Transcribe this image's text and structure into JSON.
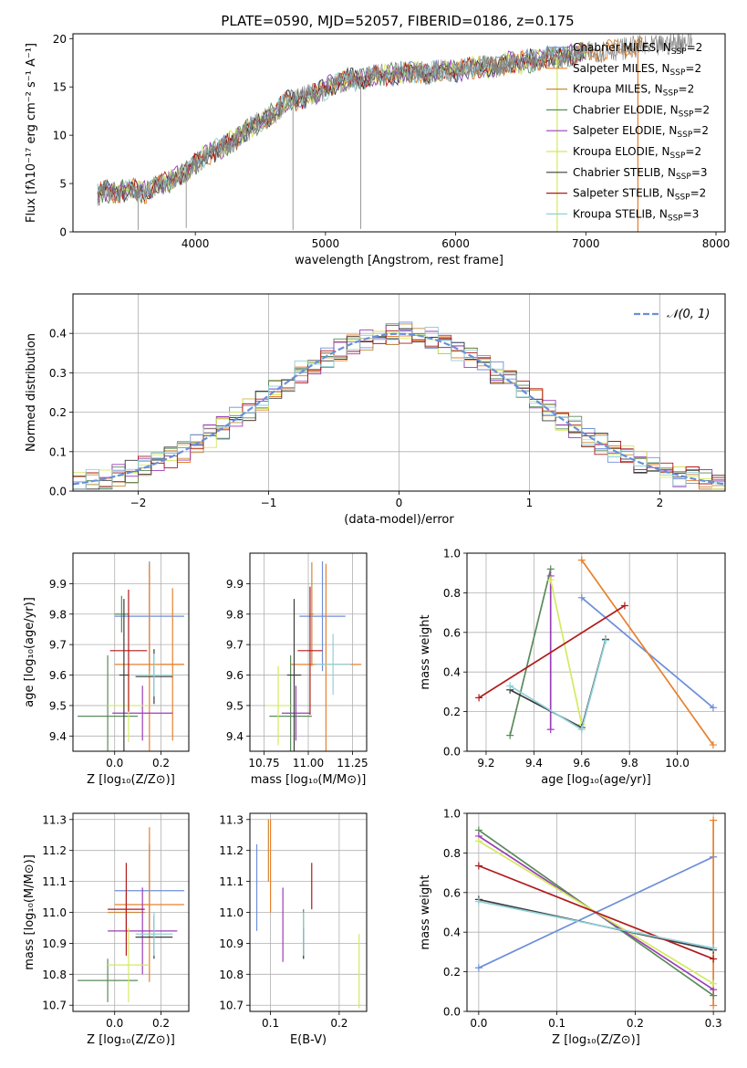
{
  "figure": {
    "title": "PLATE=0590, MJD=52057, FIBERID=0186, z=0.175"
  },
  "models": [
    {
      "name": "Chabrier MILES",
      "nssp": "2",
      "color": "#6e8fd8"
    },
    {
      "name": "Salpeter MILES",
      "nssp": "2",
      "color": "#e8802c"
    },
    {
      "name": "Kroupa MILES",
      "nssp": "2",
      "color": "#c98a3a"
    },
    {
      "name": "Chabrier ELODIE",
      "nssp": "2",
      "color": "#5a8a5a"
    },
    {
      "name": "Salpeter ELODIE",
      "nssp": "2",
      "color": "#9a3fb8"
    },
    {
      "name": "Kroupa ELODIE",
      "nssp": "2",
      "color": "#d4ea60"
    },
    {
      "name": "Chabrier STELIB",
      "nssp": "3",
      "color": "#3c3c3c"
    },
    {
      "name": "Salpeter STELIB",
      "nssp": "2",
      "color": "#b01a1a"
    },
    {
      "name": "Kroupa STELIB",
      "nssp": "3",
      "color": "#8fd0d8"
    }
  ],
  "chart_data": [
    {
      "id": "spectrum",
      "type": "line",
      "xlabel": "wavelength [Angstrom, rest frame]",
      "ylabel": "Flux [fλ10⁻¹⁷ erg cm⁻² s⁻¹ A⁻¹]",
      "xlim": [
        3060,
        8070
      ],
      "ylim": [
        0,
        20.5
      ],
      "xticks": [
        4000,
        5000,
        6000,
        7000,
        8000
      ],
      "yticks": [
        0,
        5,
        10,
        15,
        20
      ],
      "grid": false,
      "legend": "upper right",
      "observed": {
        "color": "#808080",
        "x": [
          3250,
          3300,
          3400,
          3500,
          3600,
          3700,
          3800,
          3900,
          4000,
          4100,
          4200,
          4300,
          4400,
          4500,
          4600,
          4700,
          4800,
          4900,
          5000,
          5100,
          5200,
          5300,
          5400,
          5500,
          5600,
          5700,
          5800,
          5900,
          6000,
          6100,
          6200,
          6300,
          6400,
          6500,
          6600,
          6700,
          6800,
          6900,
          7000,
          7100,
          7200,
          7300,
          7400,
          7500,
          7600,
          7700,
          7800
        ],
        "y": [
          3.8,
          4.3,
          4.0,
          4.5,
          4.0,
          4.8,
          5.2,
          6.0,
          7.0,
          8.0,
          8.8,
          9.5,
          10.5,
          11.5,
          12.2,
          13.5,
          13.8,
          14.2,
          14.8,
          15.5,
          15.8,
          15.8,
          16.3,
          16.3,
          16.5,
          16.6,
          16.4,
          16.8,
          16.5,
          17.0,
          17.2,
          17.0,
          17.5,
          17.6,
          17.7,
          18.0,
          18.1,
          18.3,
          18.5,
          18.7,
          18.8,
          19.0,
          19.2,
          19.1,
          19.3,
          19.6,
          19.8
        ]
      },
      "spikes": [
        {
          "x": 3560,
          "y": 0.2
        },
        {
          "x": 3930,
          "y": 0.4
        },
        {
          "x": 4750,
          "y": 0.2
        },
        {
          "x": 5270,
          "y": 0.3
        },
        {
          "x": 6780,
          "y": 0.2
        },
        {
          "x": 7400,
          "y": 0.3
        }
      ]
    },
    {
      "id": "residual-histogram",
      "type": "bar",
      "xlabel": "(data-model)/error",
      "ylabel": "Normed distribution",
      "xlim": [
        -2.5,
        2.5
      ],
      "ylim": [
        0,
        0.5
      ],
      "xticks": [
        -2,
        -1,
        0,
        1,
        2
      ],
      "yticks": [
        0.0,
        0.1,
        0.2,
        0.3,
        0.4
      ],
      "grid": true,
      "legend": "upper right",
      "reference": {
        "label": "𝒩(0, 1)",
        "color": "#6890d8",
        "mu": 0,
        "sigma": 1
      },
      "bin_width": 0.1,
      "bin_start": -2.5,
      "profile": [
        0.022,
        0.025,
        0.03,
        0.04,
        0.045,
        0.05,
        0.055,
        0.062,
        0.07,
        0.08,
        0.09,
        0.1,
        0.11,
        0.125,
        0.14,
        0.155,
        0.17,
        0.19,
        0.21,
        0.23,
        0.25,
        0.27,
        0.29,
        0.31,
        0.33,
        0.345,
        0.36,
        0.375,
        0.385,
        0.395,
        0.4,
        0.41,
        0.42,
        0.425,
        0.43,
        0.435,
        0.43,
        0.42,
        0.41,
        0.4,
        0.39,
        0.38,
        0.37,
        0.355,
        0.34,
        0.32,
        0.3,
        0.28,
        0.26,
        0.24,
        0.22,
        0.2,
        0.18,
        0.16,
        0.14,
        0.125,
        0.11,
        0.095,
        0.08,
        0.07,
        0.06,
        0.052,
        0.045,
        0.04,
        0.035,
        0.03,
        0.027,
        0.025,
        0.023,
        0.022,
        0.021,
        0.02,
        0.02,
        0.02,
        0.02,
        0.02,
        0.02,
        0.02,
        0.02,
        0.02,
        0.02,
        0.02,
        0.02,
        0.02,
        0.02,
        0.02,
        0.02,
        0.02,
        0.02,
        0.02,
        0.02,
        0.02,
        0.02,
        0.02,
        0.02,
        0.02,
        0.02,
        0.02,
        0.02,
        0.02
      ]
    },
    {
      "id": "age-vs-z",
      "type": "scatter",
      "xlabel": "Z [log₁₀(Z/Z⊙)]",
      "ylabel": "age  [log₁₀(age/yr)]",
      "xlim": [
        -0.18,
        0.32
      ],
      "ylim": [
        9.35,
        10.0
      ],
      "xticks": [
        0.0,
        0.2
      ],
      "xticklabels": [
        "0.0",
        "0.2"
      ],
      "yticks": [
        9.4,
        9.5,
        9.6,
        9.7,
        9.8,
        9.9
      ],
      "grid": true,
      "points": [
        {
          "x": 0.15,
          "y": 9.793,
          "xerr": 0.15,
          "yerr": 0.18,
          "model": 0
        },
        {
          "x": 0.15,
          "y": 9.635,
          "xerr": 0.15,
          "yerr": 0.33,
          "model": 1
        },
        {
          "x": 0.25,
          "y": 9.635,
          "xerr": 0.05,
          "yerr": 0.25,
          "model": 1
        },
        {
          "x": 0.03,
          "y": 9.8,
          "xerr": 0.03,
          "yerr": 0.06,
          "model": 3
        },
        {
          "x": -0.03,
          "y": 9.465,
          "xerr": 0.13,
          "yerr": 0.2,
          "model": 3
        },
        {
          "x": 0.12,
          "y": 9.475,
          "xerr": 0.13,
          "yerr": 0.09,
          "model": 4
        },
        {
          "x": 0.06,
          "y": 9.5,
          "xerr": 0.09,
          "yerr": 0.12,
          "model": 5
        },
        {
          "x": 0.17,
          "y": 9.595,
          "xerr": 0.08,
          "yerr": 0.09,
          "model": 6
        },
        {
          "x": 0.04,
          "y": 9.6,
          "xerr": 0.02,
          "yerr": 0.25,
          "model": 6
        },
        {
          "x": 0.06,
          "y": 9.68,
          "xerr": 0.08,
          "yerr": 0.2,
          "model": 7
        },
        {
          "x": 0.17,
          "y": 9.6,
          "xerr": 0.08,
          "yerr": 0.07,
          "model": 8
        }
      ]
    },
    {
      "id": "age-vs-mass",
      "type": "scatter",
      "xlabel": "mass [log₁₀(M/M⊙)]",
      "ylabel": "",
      "xlim": [
        10.67,
        11.33
      ],
      "ylim": [
        9.35,
        10.0
      ],
      "xticks": [
        10.75,
        11.0,
        11.25
      ],
      "xticklabels": [
        "10.75",
        "11.00",
        "11.25"
      ],
      "yticks": [
        9.4,
        9.5,
        9.6,
        9.7,
        9.8,
        9.9
      ],
      "grid": true,
      "points": [
        {
          "x": 11.08,
          "y": 9.793,
          "xerr": 0.13,
          "yerr": 0.18,
          "model": 0
        },
        {
          "x": 11.1,
          "y": 9.635,
          "xerr": 0.2,
          "yerr": 0.33,
          "model": 1
        },
        {
          "x": 11.02,
          "y": 9.8,
          "xerr": 0.01,
          "yerr": 0.17,
          "model": 2
        },
        {
          "x": 10.9,
          "y": 9.465,
          "xerr": 0.12,
          "yerr": 0.2,
          "model": 3
        },
        {
          "x": 10.93,
          "y": 9.475,
          "xerr": 0.08,
          "yerr": 0.09,
          "model": 4
        },
        {
          "x": 10.83,
          "y": 9.5,
          "xerr": 0.07,
          "yerr": 0.13,
          "model": 5
        },
        {
          "x": 10.92,
          "y": 9.6,
          "xerr": 0.04,
          "yerr": 0.25,
          "model": 6
        },
        {
          "x": 11.01,
          "y": 9.68,
          "xerr": 0.07,
          "yerr": 0.21,
          "model": 7
        },
        {
          "x": 11.14,
          "y": 9.635,
          "xerr": 0.1,
          "yerr": 0.1,
          "model": 8
        }
      ]
    },
    {
      "id": "weight-vs-age",
      "type": "line",
      "xlabel": "age  [log₁₀(age/yr)]",
      "ylabel": "mass weight",
      "xlim": [
        9.12,
        10.2
      ],
      "ylim": [
        0,
        1.0
      ],
      "xticks": [
        9.2,
        9.4,
        9.6,
        9.8,
        10.0
      ],
      "xticklabels": [
        "9.2",
        "9.4",
        "9.6",
        "9.8",
        "10.0"
      ],
      "yticks": [
        0.0,
        0.2,
        0.4,
        0.6,
        0.8,
        1.0
      ],
      "grid": true,
      "series": [
        {
          "model": 0,
          "x": [
            9.6,
            10.15
          ],
          "y": [
            0.775,
            0.22
          ]
        },
        {
          "model": 1,
          "x": [
            9.6,
            10.15
          ],
          "y": [
            0.965,
            0.032
          ]
        },
        {
          "model": 3,
          "x": [
            9.3,
            9.47
          ],
          "y": [
            0.08,
            0.92
          ]
        },
        {
          "model": 4,
          "x": [
            9.47,
            9.47
          ],
          "y": [
            0.885,
            0.11
          ]
        },
        {
          "model": 5,
          "x": [
            9.47,
            9.6
          ],
          "y": [
            0.865,
            0.135
          ]
        },
        {
          "model": 6,
          "x": [
            9.3,
            9.6,
            9.7
          ],
          "y": [
            0.31,
            0.12,
            0.565
          ]
        },
        {
          "model": 7,
          "x": [
            9.17,
            9.78
          ],
          "y": [
            0.27,
            0.735
          ]
        },
        {
          "model": 8,
          "x": [
            9.3,
            9.6,
            9.7
          ],
          "y": [
            0.33,
            0.11,
            0.56
          ]
        }
      ]
    },
    {
      "id": "mass-vs-z",
      "type": "scatter",
      "xlabel": "Z [log₁₀(Z/Z⊙)]",
      "ylabel": "mass [log₁₀(M/M⊙)]",
      "xlim": [
        -0.18,
        0.32
      ],
      "ylim": [
        10.68,
        11.32
      ],
      "xticks": [
        0.0,
        0.2
      ],
      "xticklabels": [
        "0.0",
        "0.2"
      ],
      "yticks": [
        10.7,
        10.8,
        10.9,
        11.0,
        11.1,
        11.2,
        11.3
      ],
      "grid": true,
      "points": [
        {
          "x": 0.15,
          "y": 11.07,
          "xerr": 0.15,
          "yerr": 0.15,
          "model": 0
        },
        {
          "x": 0.15,
          "y": 11.025,
          "xerr": 0.15,
          "yerr": 0.25,
          "model": 1
        },
        {
          "x": 0.05,
          "y": 11.0,
          "xerr": 0.08,
          "yerr": 0.06,
          "model": 2
        },
        {
          "x": -0.03,
          "y": 10.78,
          "xerr": 0.13,
          "yerr": 0.07,
          "model": 3
        },
        {
          "x": 0.12,
          "y": 10.94,
          "xerr": 0.15,
          "yerr": 0.14,
          "model": 4
        },
        {
          "x": 0.06,
          "y": 10.83,
          "xerr": 0.09,
          "yerr": 0.12,
          "model": 5
        },
        {
          "x": 0.17,
          "y": 10.92,
          "xerr": 0.08,
          "yerr": 0.07,
          "model": 6
        },
        {
          "x": 0.05,
          "y": 11.01,
          "xerr": 0.08,
          "yerr": 0.15,
          "model": 7
        },
        {
          "x": 0.17,
          "y": 10.93,
          "xerr": 0.08,
          "yerr": 0.07,
          "model": 8
        }
      ]
    },
    {
      "id": "mass-vs-ebv",
      "type": "scatter",
      "xlabel": "E(B-V)",
      "ylabel": "",
      "xlim": [
        0.07,
        0.24
      ],
      "ylim": [
        10.68,
        11.32
      ],
      "xticks": [
        0.1,
        0.2
      ],
      "xticklabels": [
        "0.1",
        "0.2"
      ],
      "yticks": [
        10.7,
        10.8,
        10.9,
        11.0,
        11.1,
        11.2,
        11.3
      ],
      "grid": true,
      "points": [
        {
          "x": 0.08,
          "y": 11.08,
          "yerr": 0.14,
          "model": 0
        },
        {
          "x": 0.1,
          "y": 11.15,
          "yerr": 0.15,
          "model": 1
        },
        {
          "x": 0.097,
          "y": 11.2,
          "yerr": 0.1,
          "model": 2
        },
        {
          "x": 0.148,
          "y": 10.93,
          "yerr": 0.08,
          "model": 3
        },
        {
          "x": 0.118,
          "y": 10.96,
          "yerr": 0.12,
          "model": 4
        },
        {
          "x": 0.229,
          "y": 10.81,
          "yerr": 0.12,
          "model": 5
        },
        {
          "x": 0.148,
          "y": 10.9,
          "yerr": 0.05,
          "model": 6
        },
        {
          "x": 0.16,
          "y": 11.085,
          "yerr": 0.075,
          "model": 7
        },
        {
          "x": 0.148,
          "y": 10.93,
          "yerr": 0.07,
          "model": 8
        }
      ]
    },
    {
      "id": "weight-vs-z",
      "type": "line",
      "xlabel": "Z [log₁₀(Z/Z⊙)]",
      "ylabel": "mass weight",
      "xlim": [
        -0.015,
        0.315
      ],
      "ylim": [
        0,
        1.0
      ],
      "xticks": [
        0.0,
        0.1,
        0.2,
        0.3
      ],
      "xticklabels": [
        "0.0",
        "0.1",
        "0.2",
        "0.3"
      ],
      "yticks": [
        0.0,
        0.2,
        0.4,
        0.6,
        0.8,
        1.0
      ],
      "grid": true,
      "series": [
        {
          "model": 0,
          "x": [
            0.0,
            0.3
          ],
          "y": [
            0.22,
            0.78
          ]
        },
        {
          "model": 1,
          "x": [
            0.3,
            0.3
          ],
          "y": [
            0.965,
            0.03
          ]
        },
        {
          "model": 3,
          "x": [
            0.0,
            0.3
          ],
          "y": [
            0.915,
            0.08
          ]
        },
        {
          "model": 4,
          "x": [
            0.0,
            0.3
          ],
          "y": [
            0.885,
            0.11
          ]
        },
        {
          "model": 5,
          "x": [
            0.0,
            0.3
          ],
          "y": [
            0.86,
            0.14
          ]
        },
        {
          "model": 6,
          "x": [
            0.0,
            0.3
          ],
          "y": [
            0.565,
            0.31
          ]
        },
        {
          "model": 7,
          "x": [
            0.0,
            0.3
          ],
          "y": [
            0.735,
            0.265
          ]
        },
        {
          "model": 8,
          "x": [
            0.0,
            0.3
          ],
          "y": [
            0.555,
            0.32
          ]
        }
      ]
    }
  ]
}
